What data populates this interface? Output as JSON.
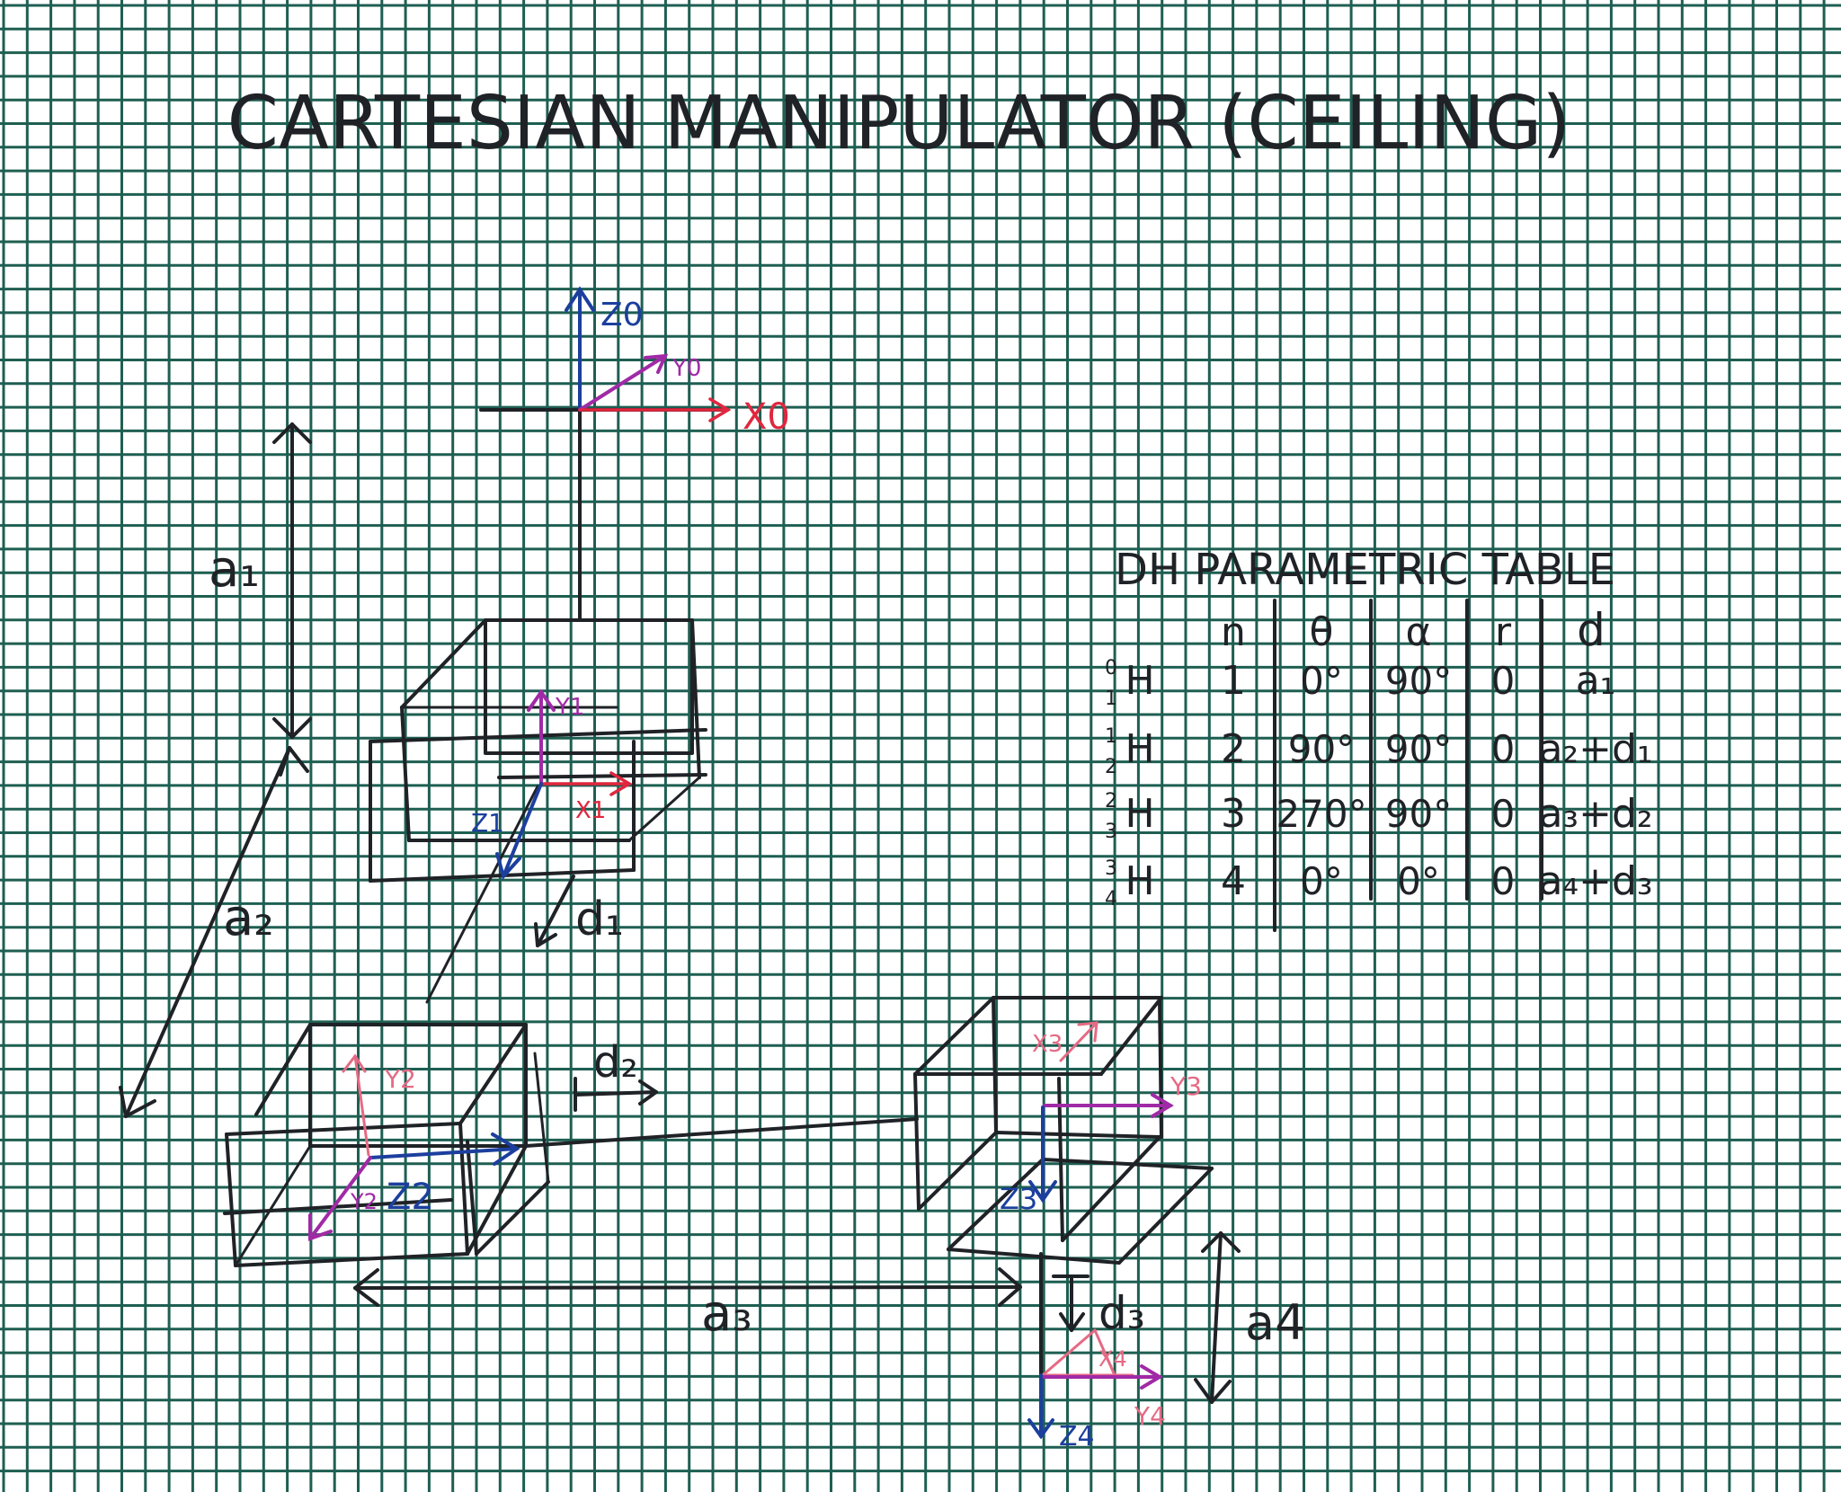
{
  "title": "CARTESIAN MANIPULATOR (CEILING)",
  "table": {
    "heading": "DH PARAMETRIC TABLE",
    "columns": [
      "n",
      "θ",
      "α",
      "r",
      "d"
    ],
    "rows": [
      {
        "sup": "0",
        "sub": "1",
        "h": "H",
        "n": "1",
        "theta": "0°",
        "alpha": "90°",
        "r": "0",
        "d": "a₁"
      },
      {
        "sup": "1",
        "sub": "2",
        "h": "H",
        "n": "2",
        "theta": "90°",
        "alpha": "90°",
        "r": "0",
        "d": "a₂+d₁"
      },
      {
        "sup": "2",
        "sub": "3",
        "h": "H",
        "n": "3",
        "theta": "270°",
        "alpha": "90°",
        "r": "0",
        "d": "a₃+d₂"
      },
      {
        "sup": "3",
        "sub": "4",
        "h": "H",
        "n": "4",
        "theta": "0°",
        "alpha": "0°",
        "r": "0",
        "d": "a₄+d₃"
      }
    ]
  },
  "labels": {
    "z0": "Z0",
    "y0": "Y0",
    "x0": "X0",
    "y1": "Y1",
    "x1": "X1",
    "z1": "Z1",
    "y2": "Y2",
    "y2b": "Y2",
    "z2": "Z2",
    "x3": "X3",
    "y3": "Y3",
    "z3": "Z3",
    "x4": "X4",
    "y4": "Y4",
    "z4": "Z4",
    "a1": "a₁",
    "a2": "a₂",
    "a3": "a₃",
    "a4": "a4",
    "d1": "d₁",
    "d2": "d₂",
    "d3": "d₃"
  },
  "colors": {
    "paper": "#ffffff",
    "grid": "#1e5f52",
    "ink": "#1f2226",
    "z_axis": "#1c3f9e",
    "x_axis": "#e0263e",
    "y_axis": "#a02aa6",
    "faint": "#e56a84"
  }
}
